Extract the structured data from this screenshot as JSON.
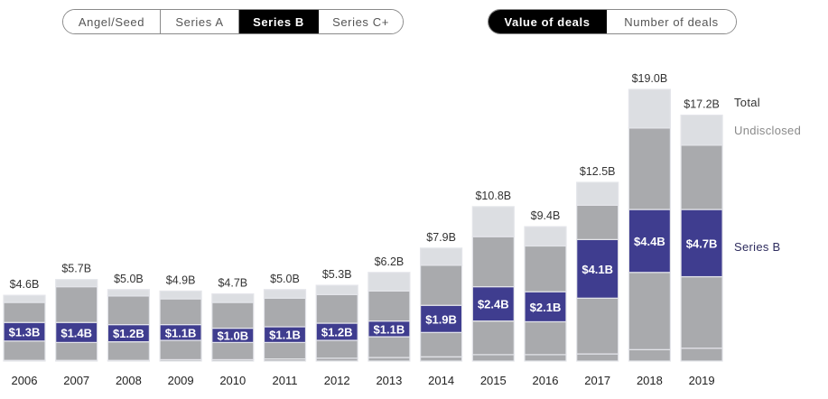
{
  "stage_tabs": [
    {
      "label": "Angel/Seed",
      "active": false
    },
    {
      "label": "Series A",
      "active": false
    },
    {
      "label": "Series B",
      "active": true
    },
    {
      "label": "Series C+",
      "active": false
    }
  ],
  "metric_tabs": [
    {
      "label": "Value of deals",
      "active": true
    },
    {
      "label": "Number of deals",
      "active": false
    }
  ],
  "colors": {
    "highlight": "#3f3d8f",
    "other_stage": "#a9aaad",
    "undisclosed": "#dcdee2",
    "separator": "#e4e5ea",
    "label_text": "#333333",
    "legend_undisclosed": "#8a8a8a",
    "legend_series": "#2e2c5e"
  },
  "chart_data": {
    "type": "bar",
    "stacked": true,
    "title": "",
    "xlabel": "",
    "ylabel": "",
    "unit": "$B",
    "categories": [
      "2006",
      "2007",
      "2008",
      "2009",
      "2010",
      "2011",
      "2012",
      "2013",
      "2014",
      "2015",
      "2016",
      "2017",
      "2018",
      "2019"
    ],
    "totals": [
      4.6,
      5.7,
      5.0,
      4.9,
      4.7,
      5.0,
      5.3,
      6.2,
      7.9,
      10.8,
      9.4,
      12.5,
      19.0,
      17.2
    ],
    "total_labels": [
      "$4.6B",
      "$5.7B",
      "$5.0B",
      "$4.9B",
      "$4.7B",
      "$5.0B",
      "$5.3B",
      "$6.2B",
      "$7.9B",
      "$10.8B",
      "$9.4B",
      "$12.5B",
      "$19.0B",
      "$17.2B"
    ],
    "series": [
      {
        "name": "Angel/Seed",
        "values": [
          0.05,
          0.05,
          0.05,
          0.1,
          0.1,
          0.15,
          0.2,
          0.25,
          0.3,
          0.45,
          0.45,
          0.5,
          0.8,
          0.9
        ]
      },
      {
        "name": "Series A",
        "values": [
          1.35,
          1.25,
          1.3,
          1.35,
          1.2,
          1.15,
          1.25,
          1.45,
          1.7,
          2.35,
          2.3,
          3.9,
          5.4,
          5.0
        ]
      },
      {
        "name": "Series B",
        "values": [
          1.3,
          1.4,
          1.2,
          1.1,
          1.0,
          1.1,
          1.2,
          1.1,
          1.9,
          2.4,
          2.1,
          4.1,
          4.4,
          4.7
        ]
      },
      {
        "name": "Series C+",
        "values": [
          1.4,
          2.5,
          2.0,
          1.8,
          1.8,
          2.0,
          2.0,
          2.1,
          2.8,
          3.5,
          3.2,
          2.4,
          5.7,
          4.5
        ]
      },
      {
        "name": "Undisclosed",
        "values": [
          0.5,
          0.5,
          0.45,
          0.55,
          0.6,
          0.6,
          0.65,
          1.3,
          1.2,
          2.1,
          1.35,
          1.6,
          2.7,
          2.1
        ]
      }
    ],
    "highlight_series": "Series B",
    "highlight_labels": [
      "$1.3B",
      "$1.4B",
      "$1.2B",
      "$1.1B",
      "$1.0B",
      "$1.1B",
      "$1.2B",
      "$1.1B",
      "$1.9B",
      "$2.4B",
      "$2.1B",
      "$4.1B",
      "$4.4B",
      "$4.7B"
    ],
    "ylim": [
      0,
      19.0
    ],
    "grid": false,
    "legend": {
      "placement": "right",
      "entries": [
        "Total",
        "Undisclosed",
        "Series B"
      ]
    }
  }
}
